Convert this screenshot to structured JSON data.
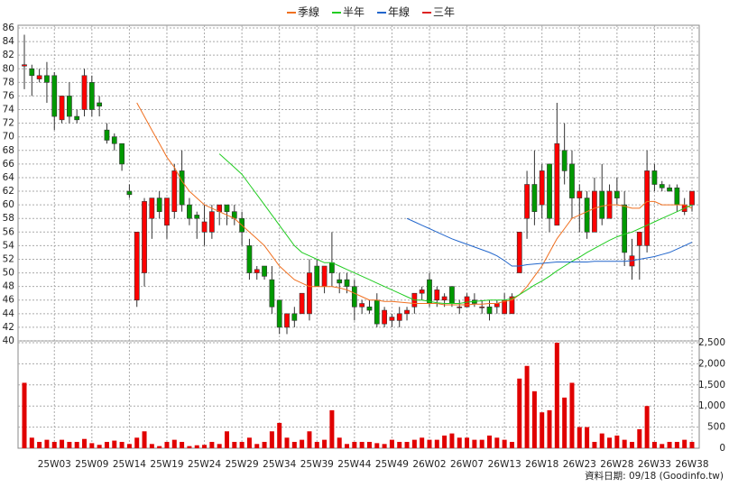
{
  "chart_data": {
    "type": "candlestick",
    "categories": [
      null,
      null,
      null,
      null,
      "25W03",
      null,
      null,
      null,
      null,
      "25W09",
      null,
      null,
      null,
      null,
      "25W14",
      null,
      null,
      null,
      null,
      "25W19",
      null,
      null,
      null,
      null,
      "25W24",
      null,
      null,
      null,
      null,
      "25W29",
      null,
      null,
      null,
      null,
      "25W34",
      null,
      null,
      null,
      null,
      "25W39",
      null,
      null,
      null,
      null,
      "25W44",
      null,
      null,
      null,
      null,
      "25W49",
      null,
      null,
      null,
      null,
      "26W02",
      null,
      null,
      null,
      null,
      "26W07",
      null,
      null,
      null,
      null,
      "26W13",
      null,
      null,
      null,
      null,
      "26W18",
      null,
      null,
      null,
      null,
      "26W23",
      null,
      null,
      null,
      null,
      "26W28",
      null,
      null,
      null,
      null,
      "26W33",
      null,
      null,
      null,
      null,
      "26W38"
    ],
    "open": [
      80.4,
      80,
      78.5,
      79,
      79,
      72.5,
      76,
      73,
      74,
      78,
      75,
      71,
      70,
      69,
      62,
      46,
      50,
      58,
      61,
      57,
      59,
      65,
      60,
      58.5,
      56,
      56,
      59,
      60,
      59,
      58,
      54,
      50,
      51,
      49,
      46,
      42,
      44,
      44,
      44,
      51,
      48,
      51.5,
      49,
      49,
      48,
      45,
      45,
      46,
      42.5,
      43,
      43,
      44,
      45,
      47,
      49,
      46,
      46,
      48,
      45,
      45,
      46,
      45,
      45,
      45,
      44,
      44,
      50,
      58,
      63,
      60,
      66,
      57,
      68,
      66,
      61,
      61,
      56,
      62,
      58,
      62,
      60,
      51,
      54,
      54,
      65,
      63,
      62.5,
      62.5,
      59,
      60
    ],
    "high": [
      85,
      80.6,
      80,
      81,
      79.5,
      76,
      78,
      74,
      80,
      79,
      76,
      72,
      70.5,
      69,
      63,
      56,
      61,
      61,
      62,
      61,
      66,
      68,
      61,
      59,
      60,
      60,
      60,
      60,
      60,
      59,
      55,
      51,
      51,
      51,
      46,
      44,
      45,
      47,
      52,
      52,
      51,
      56,
      50,
      50,
      49,
      46,
      46,
      47,
      45,
      44,
      45,
      45,
      47,
      48,
      50,
      48,
      47,
      48,
      46,
      47,
      47,
      46,
      46,
      46,
      47,
      47,
      56,
      65,
      68,
      66,
      66,
      75,
      72,
      68,
      63,
      62,
      64,
      66,
      63,
      64,
      62,
      55,
      56,
      68,
      66,
      63.5,
      63,
      63,
      61,
      62
    ],
    "low": [
      77,
      76,
      78,
      75,
      71,
      72,
      72,
      72,
      73,
      73,
      73,
      69,
      68,
      65,
      61,
      45,
      48,
      55,
      58,
      55,
      58,
      59,
      57,
      55,
      54,
      55,
      57,
      57,
      57,
      54,
      49,
      49,
      49,
      44,
      41,
      41,
      42,
      44,
      43,
      48,
      47,
      48,
      47,
      47,
      43,
      44,
      44,
      42,
      42,
      42,
      42,
      43,
      44,
      46,
      45,
      45,
      45,
      45,
      44,
      45,
      45,
      44,
      43,
      44,
      44,
      44,
      50,
      55,
      57,
      58,
      56,
      57,
      63,
      58,
      56,
      55,
      56,
      57,
      58,
      60,
      51,
      49,
      49,
      53,
      62,
      62,
      62,
      59,
      58.5,
      59
    ],
    "close": [
      80.6,
      79,
      79,
      78,
      73,
      76,
      73,
      72.5,
      79,
      74,
      74.5,
      69.5,
      69,
      66,
      61.5,
      56,
      60.5,
      61,
      59,
      61,
      65,
      60,
      58,
      58,
      57.5,
      59,
      60,
      59,
      58,
      56,
      50,
      50.5,
      49.5,
      45,
      42,
      44,
      43,
      47,
      50,
      48,
      51,
      50,
      48.5,
      48,
      45,
      45.5,
      44.5,
      42.5,
      44.5,
      43.5,
      44,
      44.5,
      47,
      47.5,
      45.5,
      47.5,
      46.5,
      45.5,
      45,
      46.5,
      45.5,
      45,
      44,
      45.5,
      46,
      46.5,
      56,
      63,
      59,
      65,
      58,
      69,
      65,
      61,
      62,
      56,
      62,
      58,
      62,
      61,
      53,
      52.5,
      56,
      65,
      63,
      62.5,
      62,
      60,
      60,
      62
    ],
    "volume": [
      1550,
      250,
      150,
      200,
      150,
      200,
      150,
      150,
      220,
      120,
      80,
      150,
      180,
      150,
      100,
      250,
      400,
      100,
      50,
      150,
      200,
      150,
      50,
      70,
      80,
      150,
      100,
      400,
      150,
      150,
      250,
      100,
      150,
      400,
      600,
      250,
      150,
      200,
      400,
      150,
      200,
      900,
      250,
      100,
      150,
      150,
      150,
      120,
      100,
      200,
      150,
      150,
      200,
      250,
      200,
      200,
      300,
      350,
      250,
      250,
      200,
      200,
      300,
      250,
      200,
      150,
      1650,
      1950,
      1350,
      850,
      900,
      2500,
      1200,
      1550,
      500,
      500,
      150,
      350,
      250,
      300,
      200,
      150,
      450,
      1000,
      150,
      100,
      150,
      150,
      200,
      150
    ],
    "up_color": "#ff0000",
    "down_color": "#009900",
    "volume_color": "#e00000",
    "series": [
      {
        "name": "季線",
        "color": "#f07020",
        "values": [
          null,
          null,
          null,
          null,
          null,
          null,
          null,
          null,
          null,
          null,
          null,
          null,
          null,
          null,
          null,
          75,
          73,
          71,
          69,
          67,
          65.5,
          63.5,
          62,
          61,
          60,
          59.5,
          59,
          58.5,
          58,
          57,
          56,
          55,
          54,
          52.5,
          51,
          50,
          49,
          48.5,
          48,
          48,
          48,
          48,
          47.8,
          47.5,
          47,
          46.5,
          46,
          46,
          45.8,
          45.8,
          45.7,
          45.6,
          45.5,
          45.5,
          45.5,
          45.5,
          45.3,
          45.3,
          45.3,
          45.3,
          45.4,
          45.4,
          45.5,
          45.5,
          45.8,
          46,
          46.8,
          48,
          49.5,
          51,
          53,
          55,
          56.5,
          58,
          58.5,
          59,
          59.5,
          59.8,
          60,
          60,
          59.8,
          59.5,
          59.5,
          60.5,
          60.5,
          60,
          60,
          60,
          60,
          59.5
        ]
      },
      {
        "name": "半年",
        "color": "#22cc22",
        "values": [
          null,
          null,
          null,
          null,
          null,
          null,
          null,
          null,
          null,
          null,
          null,
          null,
          null,
          null,
          null,
          null,
          null,
          null,
          null,
          null,
          null,
          null,
          null,
          null,
          null,
          null,
          67.5,
          66.5,
          65.5,
          64.5,
          63,
          61.5,
          60,
          58.5,
          57,
          55.5,
          54,
          53,
          52.5,
          52,
          51.5,
          51.5,
          51,
          50.5,
          50,
          49.5,
          49,
          48.5,
          48,
          47.5,
          47,
          46.5,
          46,
          46,
          45.8,
          45.6,
          45.5,
          45.5,
          45.5,
          45.7,
          45.8,
          45.9,
          46,
          46,
          46,
          46.2,
          46.8,
          47.5,
          48.2,
          48.8,
          49.5,
          50.3,
          51,
          51.7,
          52.3,
          53,
          53.6,
          54.2,
          54.8,
          55.3,
          55.7,
          56,
          56.5,
          57,
          57.5,
          58,
          58.5,
          59,
          59.5,
          60
        ]
      },
      {
        "name": "年線",
        "color": "#2266cc",
        "values": [
          null,
          null,
          null,
          null,
          null,
          null,
          null,
          null,
          null,
          null,
          null,
          null,
          null,
          null,
          null,
          null,
          null,
          null,
          null,
          null,
          null,
          null,
          null,
          null,
          null,
          null,
          null,
          null,
          null,
          null,
          null,
          null,
          null,
          null,
          null,
          null,
          null,
          null,
          null,
          null,
          null,
          null,
          null,
          null,
          null,
          null,
          null,
          null,
          null,
          null,
          null,
          58,
          57.5,
          57,
          56.5,
          56,
          55.5,
          55,
          54.6,
          54.2,
          53.8,
          53.4,
          53,
          52.5,
          51.8,
          51,
          51,
          51.2,
          51.3,
          51.4,
          51.5,
          51.6,
          51.6,
          51.6,
          51.6,
          51.6,
          51.7,
          51.7,
          51.7,
          51.7,
          51.7,
          51.8,
          52,
          52.2,
          52.4,
          52.7,
          53,
          53.5,
          54,
          54.5
        ]
      },
      {
        "name": "三年",
        "color": "#dd2222",
        "values": [
          null,
          null,
          null,
          null,
          null,
          null,
          null,
          null,
          null,
          null,
          null,
          null,
          null,
          null,
          null,
          null,
          null,
          null,
          null,
          null,
          null,
          null,
          null,
          null,
          null,
          null,
          null,
          null,
          null,
          null,
          null,
          null,
          null,
          null,
          null,
          null,
          null,
          null,
          null,
          null,
          null,
          null,
          null,
          null,
          null,
          null,
          null,
          null,
          null,
          null,
          null,
          null,
          null,
          null,
          null,
          null,
          null,
          null,
          null,
          null,
          null,
          null,
          null,
          null,
          null,
          null,
          null,
          null,
          null,
          null,
          null,
          null,
          null,
          null,
          null,
          null,
          null,
          null,
          null,
          null,
          null,
          null,
          null,
          null,
          null,
          null,
          null,
          null,
          null,
          null
        ]
      }
    ],
    "ylim": [
      40,
      86
    ],
    "yticks": [
      40,
      42,
      44,
      46,
      48,
      50,
      52,
      54,
      56,
      58,
      60,
      62,
      64,
      66,
      68,
      70,
      72,
      74,
      76,
      78,
      80,
      82,
      84,
      86
    ],
    "y2lim": [
      0,
      2500
    ],
    "y2ticks": [
      0,
      500,
      {
        "value": 1000,
        "label": "1,000"
      },
      {
        "value": 1500,
        "label": "1,500"
      },
      {
        "value": 2000,
        "label": "2,000"
      },
      {
        "value": 2500,
        "label": "2,500"
      }
    ],
    "grid": true,
    "footer": "資料日期: 09/18  (Goodinfo.tw)"
  }
}
